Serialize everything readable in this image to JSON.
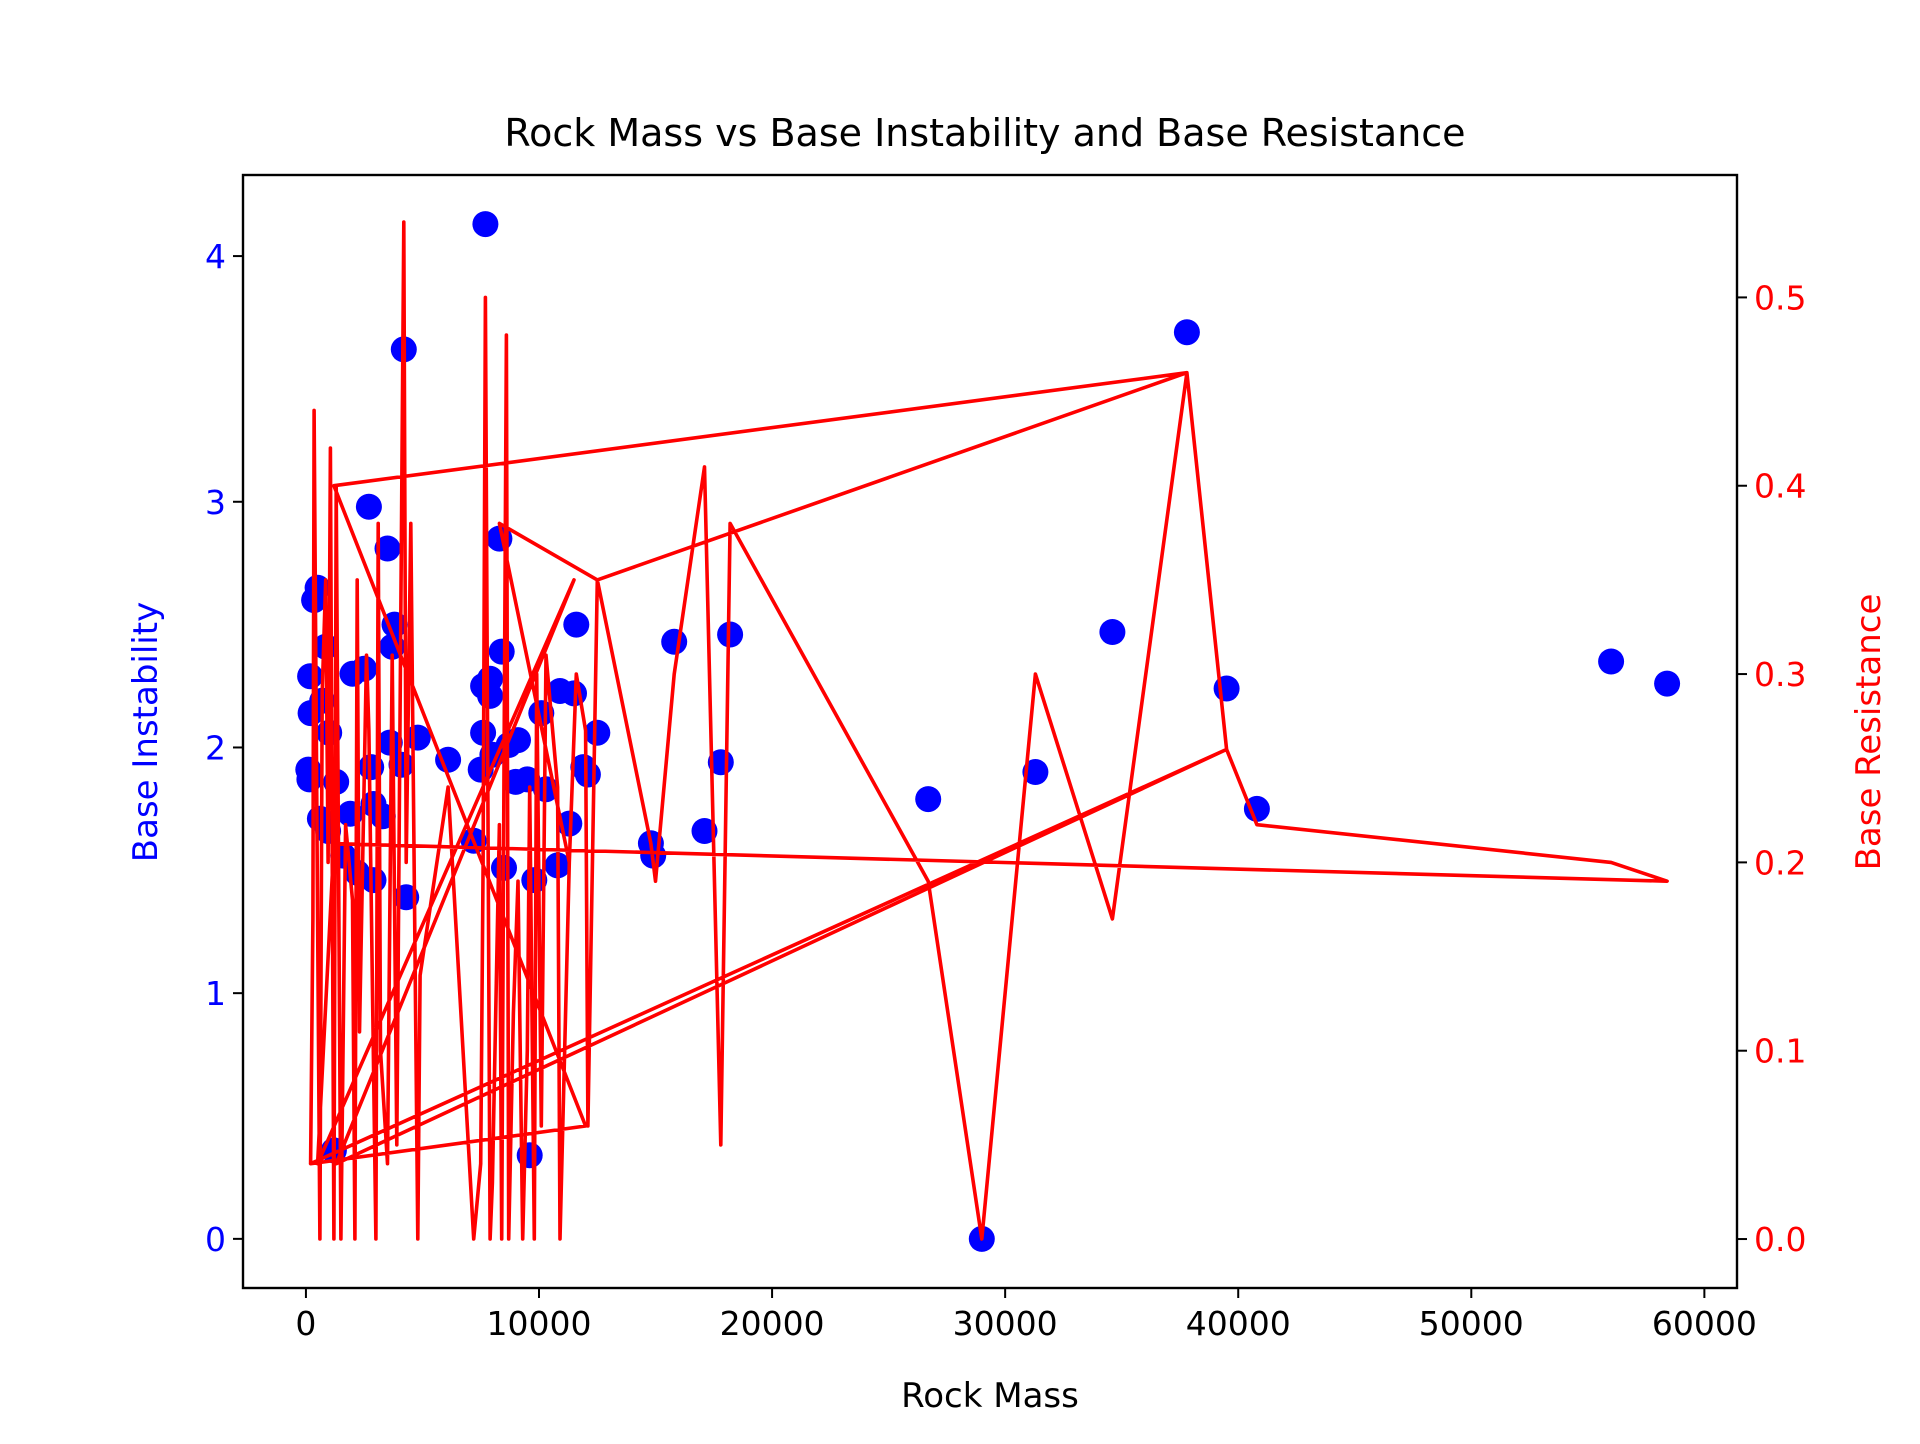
{
  "chart_data": {
    "type": "scatter",
    "title": "Rock Mass vs Base Instability and Base Resistance",
    "xlabel": "Rock Mass",
    "xlim": [
      -2700,
      61400
    ],
    "xticks": [
      0,
      10000,
      20000,
      30000,
      40000,
      50000,
      60000
    ],
    "grid": false,
    "colors": {
      "left_axis": "#0000ff",
      "right_axis": "#ff0000",
      "axes": "#000000"
    },
    "left_axis": {
      "label": "Base Instability",
      "ylim": [
        -0.2,
        4.33
      ],
      "ticks": [
        0,
        1,
        2,
        3,
        4
      ]
    },
    "right_axis": {
      "label": "Base Resistance",
      "ylim": [
        -0.026,
        0.565
      ],
      "ticks": [
        0.0,
        0.1,
        0.2,
        0.3,
        0.4,
        0.5
      ]
    },
    "scatter_series": {
      "axis": "left",
      "color": "#0000ff",
      "points": [
        [
          100,
          1.91
        ],
        [
          150,
          1.87
        ],
        [
          180,
          2.29
        ],
        [
          200,
          2.14
        ],
        [
          350,
          2.6
        ],
        [
          500,
          2.65
        ],
        [
          600,
          1.71
        ],
        [
          700,
          2.19
        ],
        [
          850,
          2.41
        ],
        [
          950,
          1.66
        ],
        [
          1000,
          2.06
        ],
        [
          1200,
          0.36
        ],
        [
          1300,
          1.86
        ],
        [
          1600,
          1.56
        ],
        [
          1900,
          1.73
        ],
        [
          2000,
          2.3
        ],
        [
          2200,
          1.49
        ],
        [
          2500,
          2.32
        ],
        [
          2700,
          2.98
        ],
        [
          2800,
          1.92
        ],
        [
          2900,
          1.77
        ],
        [
          2900,
          1.46
        ],
        [
          3300,
          1.72
        ],
        [
          3500,
          2.81
        ],
        [
          3600,
          2.02
        ],
        [
          3700,
          2.41
        ],
        [
          3800,
          2.5
        ],
        [
          4100,
          1.93
        ],
        [
          4200,
          3.62
        ],
        [
          4300,
          1.39
        ],
        [
          4800,
          2.04
        ],
        [
          6100,
          1.95
        ],
        [
          7200,
          1.62
        ],
        [
          7500,
          1.91
        ],
        [
          7600,
          2.25
        ],
        [
          7600,
          2.06
        ],
        [
          7700,
          4.13
        ],
        [
          7900,
          2.21
        ],
        [
          7900,
          2.28
        ],
        [
          8000,
          1.97
        ],
        [
          8300,
          2.85
        ],
        [
          8400,
          2.39
        ],
        [
          8500,
          1.51
        ],
        [
          8700,
          2.01
        ],
        [
          9000,
          1.86
        ],
        [
          9100,
          2.03
        ],
        [
          9500,
          1.87
        ],
        [
          9600,
          0.34
        ],
        [
          9800,
          1.46
        ],
        [
          10100,
          2.14
        ],
        [
          10300,
          1.83
        ],
        [
          10800,
          1.52
        ],
        [
          10900,
          2.23
        ],
        [
          11300,
          1.69
        ],
        [
          11500,
          2.22
        ],
        [
          11600,
          2.5
        ],
        [
          11900,
          1.92
        ],
        [
          12100,
          1.89
        ],
        [
          12500,
          2.06
        ],
        [
          14800,
          1.61
        ],
        [
          14900,
          1.56
        ],
        [
          15800,
          2.43
        ],
        [
          17100,
          1.66
        ],
        [
          17800,
          1.94
        ],
        [
          18200,
          2.46
        ],
        [
          26700,
          1.79
        ],
        [
          29000,
          0.0
        ],
        [
          31300,
          1.9
        ],
        [
          34600,
          2.47
        ],
        [
          37800,
          3.69
        ],
        [
          39500,
          2.24
        ],
        [
          40800,
          1.75
        ],
        [
          56000,
          2.35
        ],
        [
          58400,
          2.26
        ]
      ]
    },
    "line_series": {
      "axis": "right",
      "color": "#ff0000",
      "points": [
        [
          200,
          0.04
        ],
        [
          300,
          0.17
        ],
        [
          350,
          0.44
        ],
        [
          500,
          0.17
        ],
        [
          600,
          0.0
        ],
        [
          700,
          0.29
        ],
        [
          850,
          0.35
        ],
        [
          950,
          0.2
        ],
        [
          1050,
          0.42
        ],
        [
          1200,
          0.0
        ],
        [
          1300,
          0.4
        ],
        [
          1500,
          0.0
        ],
        [
          1700,
          0.22
        ],
        [
          2000,
          0.18
        ],
        [
          2100,
          0.0
        ],
        [
          2200,
          0.35
        ],
        [
          2300,
          0.11
        ],
        [
          2600,
          0.31
        ],
        [
          2700,
          0.27
        ],
        [
          3000,
          0.0
        ],
        [
          3100,
          0.38
        ],
        [
          3200,
          0.1
        ],
        [
          3500,
          0.04
        ],
        [
          3700,
          0.31
        ],
        [
          3900,
          0.05
        ],
        [
          4200,
          0.54
        ],
        [
          4300,
          0.2
        ],
        [
          4500,
          0.38
        ],
        [
          4800,
          0.0
        ],
        [
          4900,
          0.14
        ],
        [
          6100,
          0.24
        ],
        [
          7200,
          0.0
        ],
        [
          7500,
          0.04
        ],
        [
          7600,
          0.2
        ],
        [
          7700,
          0.5
        ],
        [
          7900,
          0.0
        ],
        [
          8000,
          0.03
        ],
        [
          8300,
          0.22
        ],
        [
          8400,
          0.0
        ],
        [
          8500,
          0.25
        ],
        [
          8600,
          0.48
        ],
        [
          8700,
          0.0
        ],
        [
          8900,
          0.12
        ],
        [
          9100,
          0.19
        ],
        [
          9300,
          0.0
        ],
        [
          9500,
          0.1
        ],
        [
          9600,
          0.24
        ],
        [
          9800,
          0.0
        ],
        [
          9900,
          0.3
        ],
        [
          10100,
          0.06
        ],
        [
          10300,
          0.31
        ],
        [
          10800,
          0.24
        ],
        [
          10900,
          0.0
        ],
        [
          11300,
          0.2
        ],
        [
          11600,
          0.3
        ],
        [
          12000,
          0.27
        ],
        [
          12100,
          0.06
        ],
        [
          12500,
          0.35
        ],
        [
          14800,
          0.21
        ],
        [
          15000,
          0.19
        ],
        [
          15800,
          0.3
        ],
        [
          17100,
          0.41
        ],
        [
          17800,
          0.05
        ],
        [
          18200,
          0.38
        ],
        [
          26700,
          0.19
        ],
        [
          29000,
          0.0
        ],
        [
          31300,
          0.3
        ],
        [
          34600,
          0.17
        ],
        [
          37800,
          0.46
        ],
        [
          39500,
          0.26
        ],
        [
          40800,
          0.22
        ],
        [
          56000,
          0.2
        ],
        [
          58400,
          0.19
        ],
        [
          1200,
          0.21
        ],
        [
          500,
          0.04
        ],
        [
          11500,
          0.35
        ],
        [
          1300,
          0.04
        ],
        [
          39500,
          0.26
        ],
        [
          200,
          0.04
        ],
        [
          12000,
          0.06
        ],
        [
          1200,
          0.4
        ],
        [
          37800,
          0.46
        ],
        [
          12500,
          0.35
        ],
        [
          8300,
          0.38
        ],
        [
          11300,
          0.2
        ]
      ]
    }
  }
}
